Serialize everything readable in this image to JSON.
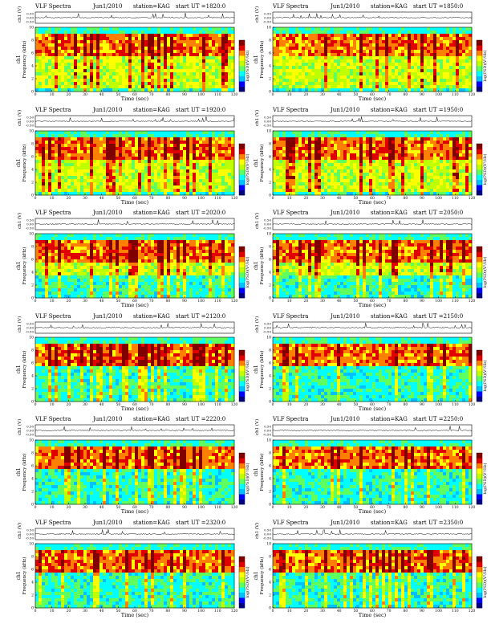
{
  "colors": {
    "background": "#ffffff",
    "colormap": [
      "#000080",
      "#0000ff",
      "#00c0ff",
      "#00ffff",
      "#60ff60",
      "#c0ff00",
      "#ffff00",
      "#ff8000",
      "#e00000",
      "#800000"
    ]
  },
  "chart_data": [
    {
      "type": "heatmap",
      "title": "VLF Spectra",
      "date": "Jun1/2010",
      "station": "station=KAG",
      "start": "start UT =1820:0",
      "ylabel_top": "ch1 (V)",
      "yticks_top": [
        "0.50",
        "0.00",
        "-0.50"
      ],
      "ylabel": "Frequency (kHz)",
      "ylabel_ch": "ch1",
      "yticks": [
        "0",
        "2",
        "4",
        "6",
        "8",
        "10"
      ],
      "xlabel": "Time (sec)",
      "xticks": [
        "0",
        "10",
        "20",
        "30",
        "40",
        "50",
        "60",
        "70",
        "80",
        "90",
        "100",
        "110",
        "120"
      ],
      "xlim": [
        0,
        120
      ],
      "ylim": [
        0,
        10
      ],
      "colorbar_label": "log(PSD)(V²/Hz)"
    },
    {
      "type": "heatmap",
      "title": "VLF Spectra",
      "date": "Jun1/2010",
      "station": "station=KAG",
      "start": "start UT =1850:0",
      "ylabel_top": "ch1 (V)",
      "yticks_top": [
        "0.50",
        "0.00",
        "-0.50"
      ],
      "ylabel": "Frequency (kHz)",
      "ylabel_ch": "ch1",
      "yticks": [
        "0",
        "2",
        "4",
        "6",
        "8",
        "10"
      ],
      "xlabel": "Time (sec)",
      "xticks": [
        "0",
        "10",
        "20",
        "30",
        "40",
        "50",
        "60",
        "70",
        "80",
        "90",
        "100",
        "110",
        "120"
      ],
      "xlim": [
        0,
        120
      ],
      "ylim": [
        0,
        10
      ],
      "colorbar_label": "log(PSD)(V²/Hz)"
    },
    {
      "type": "heatmap",
      "title": "VLF Spectra",
      "date": "Jun1/2010",
      "station": "station=KAG",
      "start": "start UT =1920:0",
      "ylabel_top": "ch1 (V)",
      "yticks_top": [
        "0.50",
        "0.00",
        "-0.50"
      ],
      "ylabel": "Frequency (kHz)",
      "ylabel_ch": "ch1",
      "yticks": [
        "0",
        "2",
        "4",
        "6",
        "8",
        "10"
      ],
      "xlabel": "Time (sec)",
      "xticks": [
        "0",
        "10",
        "20",
        "30",
        "40",
        "50",
        "60",
        "70",
        "80",
        "90",
        "100",
        "110",
        "120"
      ],
      "xlim": [
        0,
        120
      ],
      "ylim": [
        0,
        10
      ],
      "colorbar_label": "log(PSD)(V²/Hz)"
    },
    {
      "type": "heatmap",
      "title": "VLF Spectra",
      "date": "Jun1/2010",
      "station": "station=KAG",
      "start": "start UT =1950:0",
      "ylabel_top": "ch1 (V)",
      "yticks_top": [
        "0.50",
        "0.00",
        "-0.50"
      ],
      "ylabel": "Frequency (kHz)",
      "ylabel_ch": "ch1",
      "yticks": [
        "0",
        "2",
        "4",
        "6",
        "8",
        "10"
      ],
      "xlabel": "Time (sec)",
      "xticks": [
        "0",
        "10",
        "20",
        "30",
        "40",
        "50",
        "60",
        "70",
        "80",
        "90",
        "100",
        "110",
        "120"
      ],
      "xlim": [
        0,
        120
      ],
      "ylim": [
        0,
        10
      ],
      "colorbar_label": "log(PSD)(V²/Hz)"
    },
    {
      "type": "heatmap",
      "title": "VLF Spectra",
      "date": "Jun1/2010",
      "station": "station=KAG",
      "start": "start UT =2020:0",
      "ylabel_top": "ch1 (V)",
      "yticks_top": [
        "0.50",
        "0.00",
        "-0.50"
      ],
      "ylabel": "Frequency (kHz)",
      "ylabel_ch": "ch1",
      "yticks": [
        "0",
        "2",
        "4",
        "6",
        "8",
        "10"
      ],
      "xlabel": "Time (sec)",
      "xticks": [
        "0",
        "10",
        "20",
        "30",
        "40",
        "50",
        "60",
        "70",
        "80",
        "90",
        "100",
        "110",
        "120"
      ],
      "xlim": [
        0,
        120
      ],
      "ylim": [
        0,
        10
      ],
      "colorbar_label": "log(PSD)(V²/Hz)"
    },
    {
      "type": "heatmap",
      "title": "VLF Spectra",
      "date": "Jun1/2010",
      "station": "station=KAG",
      "start": "start UT =2050:0",
      "ylabel_top": "ch1 (V)",
      "yticks_top": [
        "0.50",
        "0.00",
        "-0.50"
      ],
      "ylabel": "Frequency (kHz)",
      "ylabel_ch": "ch1",
      "yticks": [
        "0",
        "2",
        "4",
        "6",
        "8",
        "10"
      ],
      "xlabel": "Time (sec)",
      "xticks": [
        "0",
        "10",
        "20",
        "30",
        "40",
        "50",
        "60",
        "70",
        "80",
        "90",
        "100",
        "110",
        "120"
      ],
      "xlim": [
        0,
        120
      ],
      "ylim": [
        0,
        10
      ],
      "colorbar_label": "log(PSD)(V²/Hz)"
    },
    {
      "type": "heatmap",
      "title": "VLF Spectra",
      "date": "Jun1/2010",
      "station": "station=KAG",
      "start": "start UT =2120:0",
      "ylabel_top": "ch1 (V)",
      "yticks_top": [
        "0.50",
        "0.00",
        "-0.50"
      ],
      "ylabel": "Frequency (kHz)",
      "ylabel_ch": "ch1",
      "yticks": [
        "0",
        "2",
        "4",
        "6",
        "8",
        "10"
      ],
      "xlabel": "Time (sec)",
      "xticks": [
        "0",
        "10",
        "20",
        "30",
        "40",
        "50",
        "60",
        "70",
        "80",
        "90",
        "100",
        "110",
        "120"
      ],
      "xlim": [
        0,
        120
      ],
      "ylim": [
        0,
        10
      ],
      "colorbar_label": "log(PSD)(V²/Hz)"
    },
    {
      "type": "heatmap",
      "title": "VLF Spectra",
      "date": "Jun1/2010",
      "station": "station=KAG",
      "start": "start UT =2150:0",
      "ylabel_top": "ch1 (V)",
      "yticks_top": [
        "0.50",
        "0.00",
        "-0.50"
      ],
      "ylabel": "Frequency (kHz)",
      "ylabel_ch": "ch1",
      "yticks": [
        "0",
        "2",
        "4",
        "6",
        "8",
        "10"
      ],
      "xlabel": "Time (sec)",
      "xticks": [
        "0",
        "10",
        "20",
        "30",
        "40",
        "50",
        "60",
        "70",
        "80",
        "90",
        "100",
        "110",
        "120"
      ],
      "xlim": [
        0,
        120
      ],
      "ylim": [
        0,
        10
      ],
      "colorbar_label": "log(PSD)(V²/Hz)"
    },
    {
      "type": "heatmap",
      "title": "VLF Spectra",
      "date": "Jun1/2010",
      "station": "station=KAG",
      "start": "start UT =2220:0",
      "ylabel_top": "ch1 (V)",
      "yticks_top": [
        "0.50",
        "0.00",
        "-0.50"
      ],
      "ylabel": "Frequency (kHz)",
      "ylabel_ch": "ch1",
      "yticks": [
        "0",
        "2",
        "4",
        "6",
        "8",
        "10"
      ],
      "xlabel": "Time (sec)",
      "xticks": [
        "0",
        "10",
        "20",
        "30",
        "40",
        "50",
        "60",
        "70",
        "80",
        "90",
        "100",
        "110",
        "120"
      ],
      "xlim": [
        0,
        120
      ],
      "ylim": [
        0,
        10
      ],
      "colorbar_label": "log(PSD)(V²/Hz)"
    },
    {
      "type": "heatmap",
      "title": "VLF Spectra",
      "date": "Jun1/2010",
      "station": "station=KAG",
      "start": "start UT =2250:0",
      "ylabel_top": "ch1 (V)",
      "yticks_top": [
        "0.50",
        "0.00",
        "-0.50"
      ],
      "ylabel": "Frequency (kHz)",
      "ylabel_ch": "ch1",
      "yticks": [
        "0",
        "2",
        "4",
        "6",
        "8",
        "10"
      ],
      "xlabel": "Time (sec)",
      "xticks": [
        "0",
        "10",
        "20",
        "30",
        "40",
        "50",
        "60",
        "70",
        "80",
        "90",
        "100",
        "110",
        "120"
      ],
      "xlim": [
        0,
        120
      ],
      "ylim": [
        0,
        10
      ],
      "colorbar_label": "log(PSD)(V²/Hz)"
    },
    {
      "type": "heatmap",
      "title": "VLF Spectra",
      "date": "Jun1/2010",
      "station": "station=KAG",
      "start": "start UT =2320:0",
      "ylabel_top": "ch1 (V)",
      "yticks_top": [
        "0.50",
        "0.00",
        "-0.50"
      ],
      "ylabel": "Frequency (kHz)",
      "ylabel_ch": "ch1",
      "yticks": [
        "0",
        "2",
        "4",
        "6",
        "8",
        "10"
      ],
      "xlabel": "Time (sec)",
      "xticks": [
        "0",
        "10",
        "20",
        "30",
        "40",
        "50",
        "60",
        "70",
        "80",
        "90",
        "100",
        "110",
        "120"
      ],
      "xlim": [
        0,
        120
      ],
      "ylim": [
        0,
        10
      ],
      "colorbar_label": "log(PSD)(V²/Hz)"
    },
    {
      "type": "heatmap",
      "title": "VLF Spectra",
      "date": "Jun1/2010",
      "station": "station=KAG",
      "start": "start UT =2350:0",
      "ylabel_top": "ch1 (V)",
      "yticks_top": [
        "0.50",
        "0.00",
        "-0.50"
      ],
      "ylabel": "Frequency (kHz)",
      "ylabel_ch": "ch1",
      "yticks": [
        "0",
        "2",
        "4",
        "6",
        "8",
        "10"
      ],
      "xlabel": "Time (sec)",
      "xticks": [
        "0",
        "10",
        "20",
        "30",
        "40",
        "50",
        "60",
        "70",
        "80",
        "90",
        "100",
        "110",
        "120"
      ],
      "xlim": [
        0,
        120
      ],
      "ylim": [
        0,
        10
      ],
      "colorbar_label": "log(PSD)(V²/Hz)"
    }
  ]
}
